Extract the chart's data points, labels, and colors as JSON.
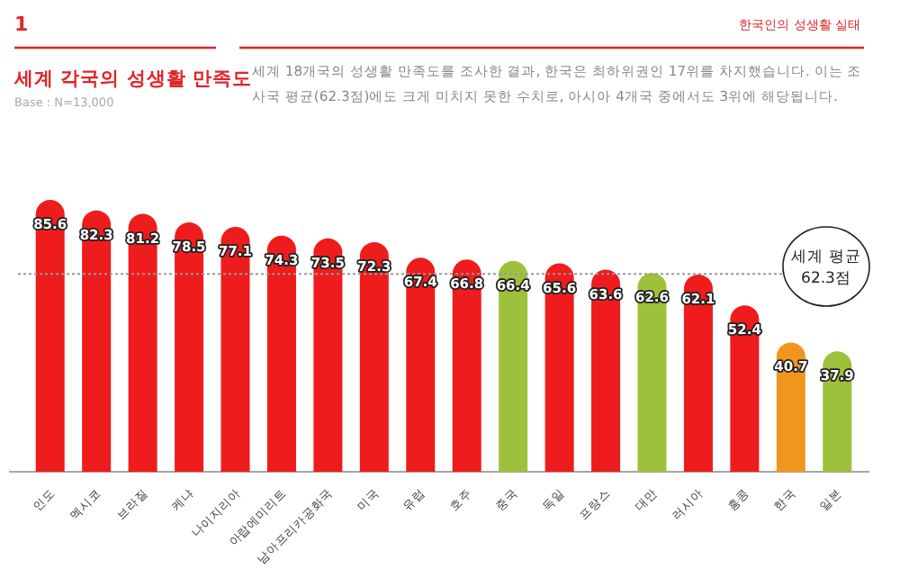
{
  "chart_data": {
    "type": "bar",
    "title": "세계 각국의 성생활 만족도",
    "subtitle": "세계 18개국의 성생활 만족도를 조사한 결과, 한국은 최하위권인 17위를 차지했습니다. 이는 조사국 평균(62.3점)에도 크게 미치지 못한 수치로, 아시아 4개국 중에서도 3위에 해당됩니다.",
    "annotations": [
      "1",
      "한국인의 성생활 실태",
      "Base : N=13,000"
    ],
    "categories": [
      "인도",
      "멕시코",
      "브라질",
      "케냐",
      "나이지리아",
      "아랍에미리트",
      "남아프리카공화국",
      "미국",
      "유럽",
      "호주",
      "중국",
      "독일",
      "프랑스",
      "대만",
      "러시아",
      "홍콩",
      "한국",
      "일본"
    ],
    "values": [
      85.6,
      82.3,
      81.2,
      78.5,
      77.1,
      74.3,
      73.5,
      72.3,
      67.4,
      66.8,
      66.4,
      65.6,
      63.6,
      62.6,
      62.1,
      52.4,
      40.7,
      37.9
    ],
    "colors": [
      "#ee1c1c",
      "#ee1c1c",
      "#ee1c1c",
      "#ee1c1c",
      "#ee1c1c",
      "#ee1c1c",
      "#ee1c1c",
      "#ee1c1c",
      "#ee1c1c",
      "#ee1c1c",
      "#9dc13a",
      "#ee1c1c",
      "#ee1c1c",
      "#9dc13a",
      "#ee1c1c",
      "#ee1c1c",
      "#f0961e",
      "#9dc13a"
    ],
    "data_labels": true,
    "tick_labels": "x",
    "ref_lines": [
      {
        "axis": "y",
        "value": 62.3,
        "label": "세계 평균 62.3점",
        "color": "#999999",
        "line_style": "dotted"
      }
    ]
  }
}
